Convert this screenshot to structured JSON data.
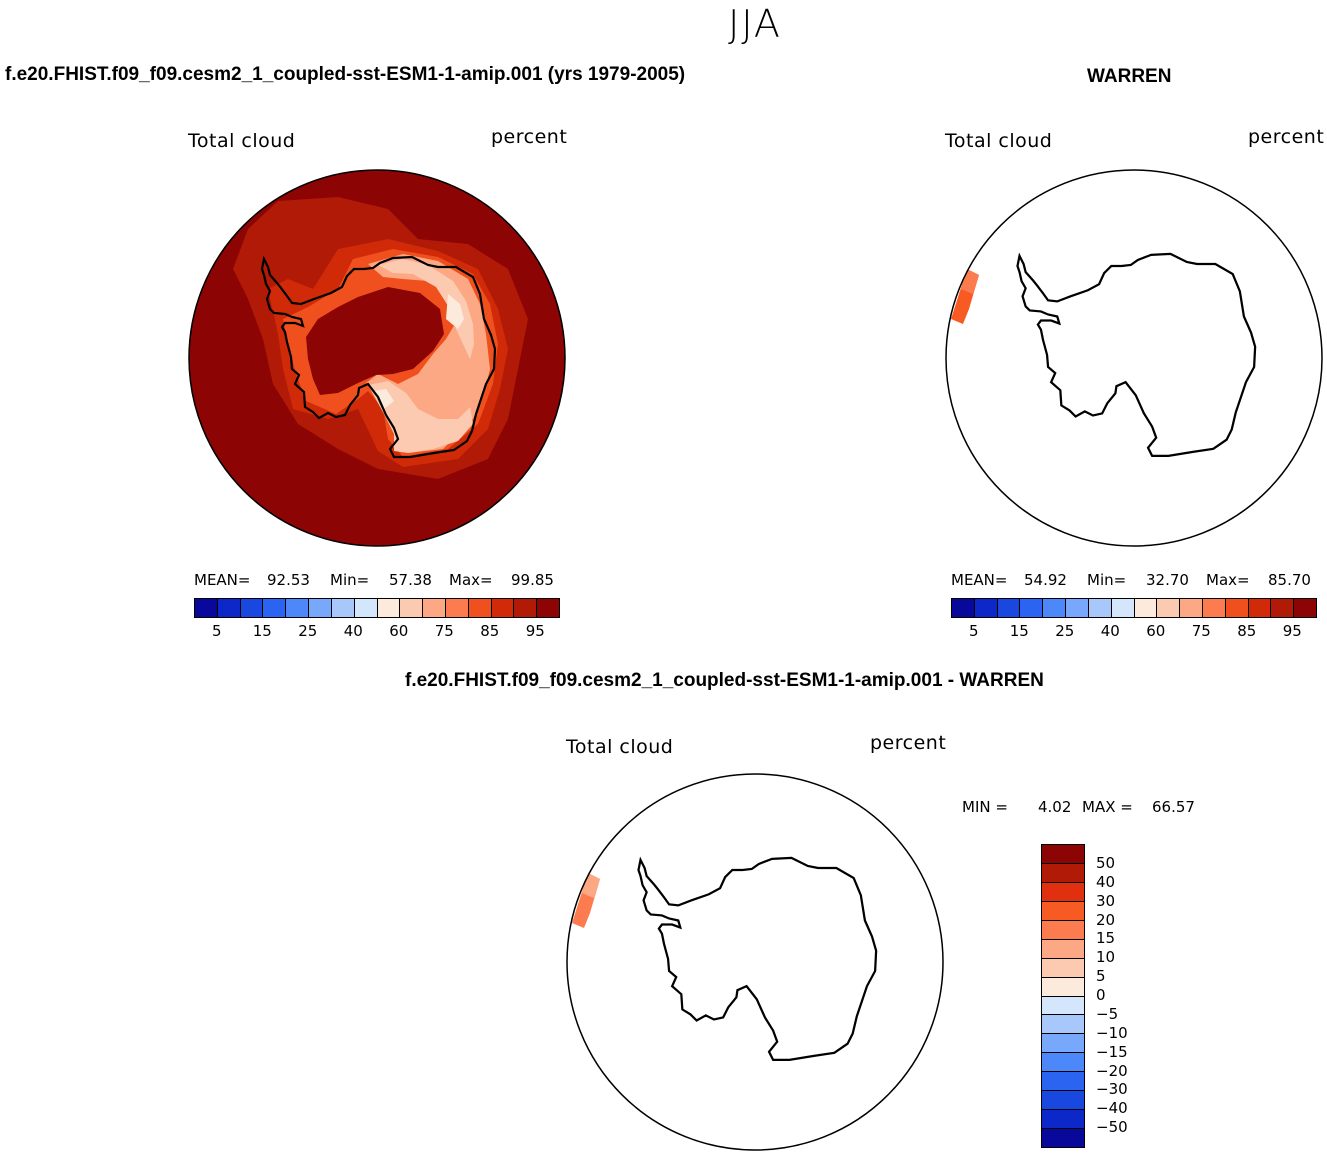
{
  "page": {
    "title": "JJA"
  },
  "panels": {
    "model": {
      "run_title": "f.e20.FHIST.f09_f09.cesm2_1_coupled-sst-ESM1-1-amip.001 (yrs 1979-2005)",
      "left_label": "Total cloud",
      "right_label": "percent",
      "mean_label": "MEAN=",
      "mean_value": "92.53",
      "min_label": "Min=",
      "min_value": "57.38",
      "max_label": "Max=",
      "max_value": "99.85"
    },
    "obs": {
      "run_title": "WARREN",
      "left_label": "Total cloud",
      "right_label": "percent",
      "mean_label": "MEAN=",
      "mean_value": "54.92",
      "min_label": "Min=",
      "min_value": "32.70",
      "max_label": "Max=",
      "max_value": "85.70"
    },
    "diff": {
      "run_title": "f.e20.FHIST.f09_f09.cesm2_1_coupled-sst-ESM1-1-amip.001 - WARREN",
      "left_label": "Total cloud",
      "right_label": "percent",
      "min_label": "MIN =",
      "min_value": "4.02",
      "max_label": "MAX =",
      "max_value": "66.57"
    }
  },
  "colorbar_abs": {
    "colors": [
      "#08089a",
      "#0c28c8",
      "#1848e0",
      "#2a64f0",
      "#4c88fa",
      "#78a8fc",
      "#a8c8fc",
      "#d4e6fc",
      "#fcebdc",
      "#fccab0",
      "#fca884",
      "#fc7c50",
      "#f0501e",
      "#d02a08",
      "#b01a06",
      "#8c0404"
    ],
    "tick_labels": [
      "5",
      "15",
      "25",
      "40",
      "60",
      "75",
      "85",
      "95"
    ]
  },
  "colorbar_diff": {
    "colors": [
      "#8c0404",
      "#b01a06",
      "#e03010",
      "#f85a24",
      "#fc7c50",
      "#fca884",
      "#fccab0",
      "#fcebdc",
      "#d4e6fc",
      "#a8c8fc",
      "#78a8fc",
      "#4c88fa",
      "#2a64f0",
      "#1848e0",
      "#0c28c8",
      "#08089a"
    ],
    "tick_labels": [
      "50",
      "40",
      "30",
      "20",
      "15",
      "10",
      "5",
      "0",
      "−5",
      "−10",
      "−15",
      "−20",
      "−30",
      "−40",
      "−50"
    ]
  }
}
